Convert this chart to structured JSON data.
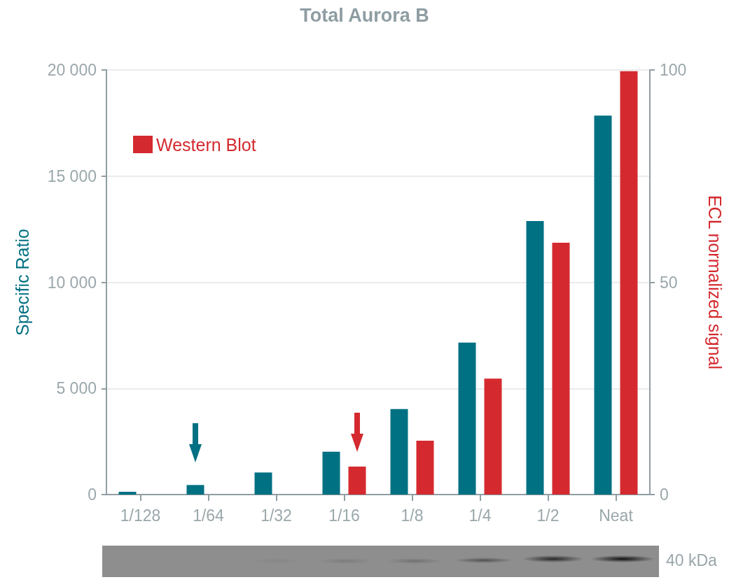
{
  "chart_data": {
    "type": "bar",
    "title": "Total Aurora B",
    "ylabel": "Specific Ratio",
    "y2label": "ECL normalized signal",
    "categories": [
      "1/128",
      "1/64",
      "1/32",
      "1/16",
      "1/8",
      "1/4",
      "1/2",
      "Neat"
    ],
    "series": [
      {
        "color": "#007083",
        "values": [
          130,
          450,
          1040,
          2020,
          4030,
          7160,
          12880,
          17850
        ]
      },
      {
        "name": "Western Blot",
        "color": "#d42a2f",
        "axis": "y2",
        "values": [
          null,
          null,
          null,
          6.6,
          12.7,
          27.3,
          59.3,
          99.7
        ]
      }
    ],
    "ylim": [
      0,
      20000
    ],
    "yticks": [
      0,
      {
        "value": 5000,
        "label": "5 000"
      },
      {
        "value": 10000,
        "label": "10 000"
      },
      {
        "value": 15000,
        "label": "15 000"
      },
      {
        "value": 20000,
        "label": "20 000"
      }
    ],
    "y2lim": [
      0,
      100
    ],
    "y2ticks": [
      0,
      50,
      100
    ],
    "grid": "y",
    "legend": "top left",
    "annotations": [
      "40 kDa"
    ]
  }
}
